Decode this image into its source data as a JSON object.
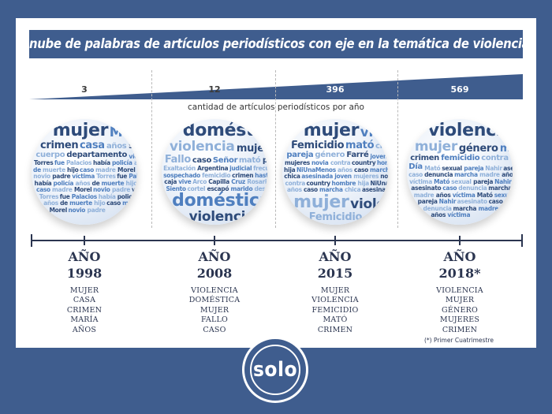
{
  "title": "nube de palabras de artículos periodísticos con eje en la temática de violencia contra las mujeres",
  "subtitle": "cantidad de artículos periodísticos por año",
  "counts": [
    "3",
    "12",
    "396",
    "569"
  ],
  "columns": [
    {
      "year_label": "AÑO",
      "year": "1998",
      "words": [
        "MUJER",
        "CASA",
        "CRIMEN",
        "MARÍA",
        "AÑOS"
      ],
      "cloud": [
        "mujer",
        "María",
        "crimen",
        "casa",
        "años",
        "Soledad",
        "cuerpo",
        "departamento",
        "víctima",
        "Torres",
        "fue",
        "Palacios",
        "había",
        "policía",
        "años",
        "de",
        "muerte",
        "hijo",
        "caso",
        "madre",
        "Morel",
        "novio",
        "padre"
      ]
    },
    {
      "year_label": "AÑO",
      "year": "2008",
      "words": [
        "VIOLENCIA",
        "DOMÉSTICA",
        "MUJER",
        "FALLO",
        "CASO"
      ],
      "cloud": [
        "doméstica",
        "violencia",
        "mujer",
        "Fallo",
        "caso",
        "Señor",
        "mató",
        "pasional",
        "Exaltación",
        "Argentina",
        "judicial",
        "frecuentes",
        "sospechado",
        "femicidio",
        "crimen",
        "hasta",
        "caja",
        "vive",
        "Arco",
        "Capilla",
        "Cruz",
        "Rosario",
        "Siento",
        "cortel",
        "escapó",
        "marido",
        "desesperada"
      ]
    },
    {
      "year_label": "AÑO",
      "year": "2015",
      "words": [
        "MUJER",
        "VIOLENCIA",
        "FEMICIDIO",
        "MATÓ",
        "CRIMEN"
      ],
      "cloud": [
        "mujer",
        "violencia",
        "Femicidio",
        "mató",
        "crimen",
        "pareja",
        "género",
        "Farré",
        "joven",
        "mujeres",
        "novia",
        "contra",
        "country",
        "hombre",
        "hija",
        "NiUnaMenos",
        "años",
        "caso",
        "marcha",
        "chica",
        "asesinada"
      ]
    },
    {
      "year_label": "AÑO",
      "year": "2018*",
      "words": [
        "VIOLENCIA",
        "MUJER",
        "GÉNERO",
        "MUJERES",
        "CRIMEN"
      ],
      "cloud": [
        "violencia",
        "mujer",
        "género",
        "mujeres",
        "crimen",
        "femicidio",
        "contra",
        "Día",
        "Mató",
        "sexual",
        "pareja",
        "Nahir",
        "asesinato",
        "caso",
        "denuncia",
        "marcha",
        "madre",
        "años",
        "víctima"
      ]
    }
  ],
  "footnote": "(*) Primer Cuatrimestre",
  "logo_text": "solo",
  "colors": {
    "background": "#3f5d8e",
    "panel": "#ffffff",
    "wedge": "#3f5d8e",
    "text_dark": "#2b3550",
    "cloud_dark": "#2e4b7a",
    "cloud_mid": "#4f7fbf",
    "cloud_light": "#8fb0d9"
  }
}
